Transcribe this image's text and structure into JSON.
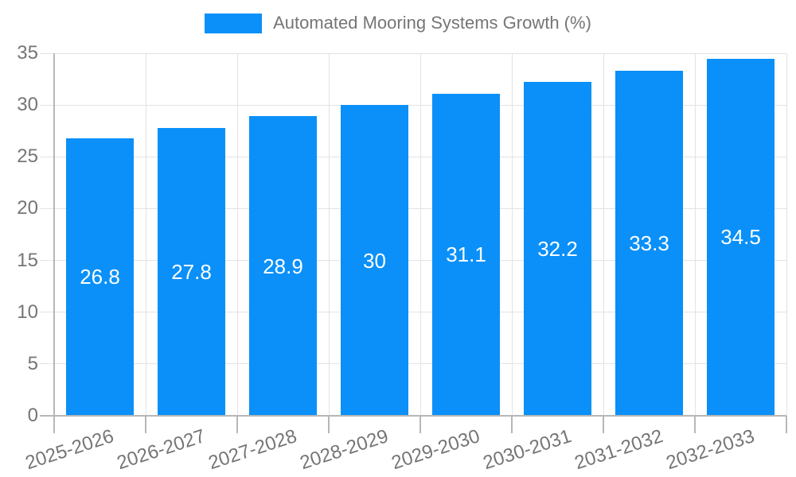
{
  "chart_data": {
    "type": "bar",
    "title": "Automated Mooring Systems Growth (%)",
    "categories": [
      "2025-2026",
      "2026-2027",
      "2027-2028",
      "2028-2029",
      "2029-2030",
      "2030-2031",
      "2031-2032",
      "2032-2033"
    ],
    "series": [
      {
        "name": "Automated Mooring Systems Growth (%)",
        "values": [
          26.8,
          27.8,
          28.9,
          30,
          31.1,
          32.2,
          33.3,
          34.5
        ]
      }
    ],
    "bar_labels": [
      "26.8",
      "27.8",
      "28.9",
      "30",
      "31.1",
      "32.2",
      "33.3",
      "34.5"
    ],
    "xlabel": "",
    "ylabel": "",
    "ylim": [
      0,
      35
    ],
    "yticks": [
      0,
      5,
      10,
      15,
      20,
      25,
      30,
      35
    ],
    "grid": true,
    "legend_position": "top",
    "value_label_position": "inside-center",
    "colors": {
      "bar": "#0a90f8",
      "axis_text": "#757575",
      "grid": "#e3e3e3",
      "axis_line": "#b7b7b7",
      "bar_label": "#ffffff",
      "background": "#ffffff"
    }
  }
}
